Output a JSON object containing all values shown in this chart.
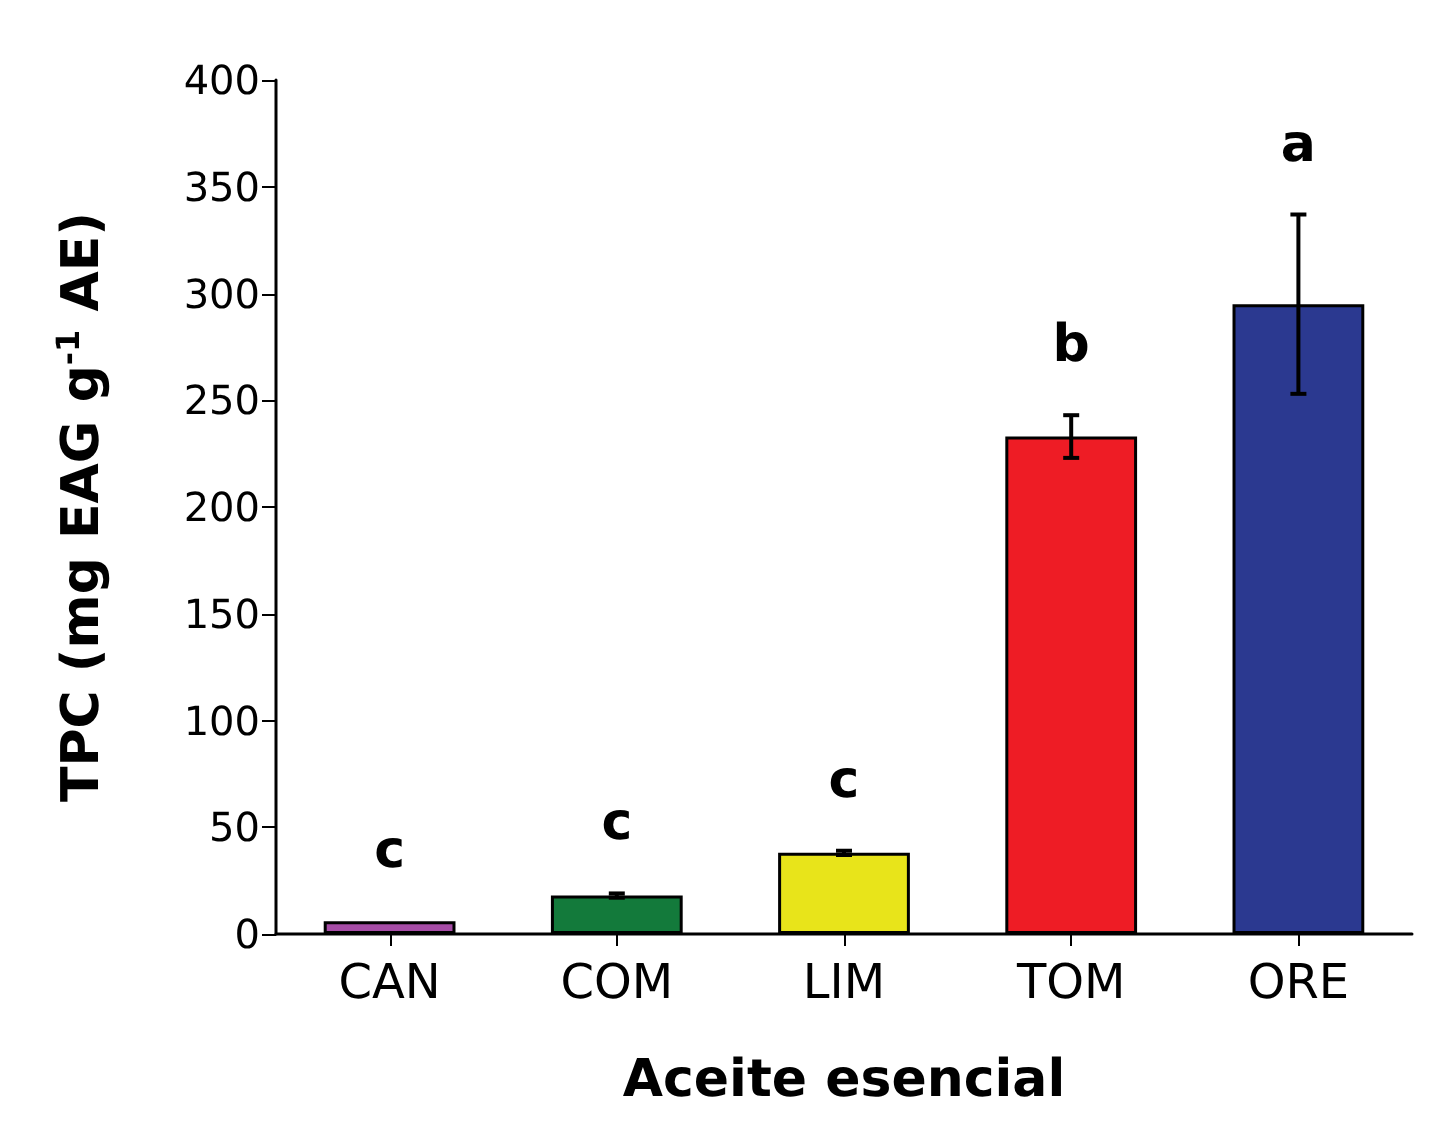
{
  "chart_data": {
    "type": "bar",
    "xlabel": "Aceite esencial",
    "ylabel": "TPC (mg EAG g$^{-1}$ AE)",
    "categories": [
      "CAN",
      "COM",
      "LIM",
      "TOM",
      "ORE"
    ],
    "values": [
      6,
      18,
      38,
      233,
      295
    ],
    "colors": [
      "#a64ca6",
      "#137a3b",
      "#e8e41a",
      "#ee1c25",
      "#2b3990"
    ],
    "errors": [
      null,
      1,
      1,
      10,
      42
    ],
    "ylim": [
      0,
      400
    ],
    "yticks": [
      0,
      50,
      100,
      150,
      200,
      250,
      300,
      350,
      400
    ],
    "grid": false,
    "annotations": [
      "c",
      "c",
      "c",
      "b",
      "a"
    ]
  }
}
